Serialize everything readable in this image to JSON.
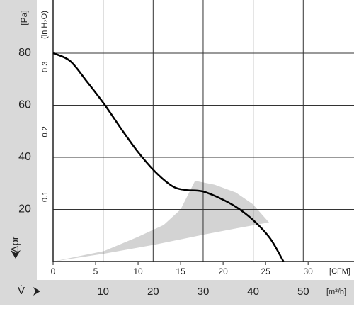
{
  "chart_data": {
    "type": "line",
    "xlim": [
      0,
      35.4
    ],
    "xticks": [
      0,
      5,
      10,
      15,
      20,
      25,
      30
    ],
    "xlabel": "[CFM]",
    "x2lim": [
      0,
      60.15
    ],
    "x2ticks": [
      10,
      20,
      30,
      40,
      50
    ],
    "x2label": "[m³/h]",
    "x2name": "V̇",
    "ylim": [
      0,
      100.4
    ],
    "yticks": [
      20,
      40,
      60,
      80
    ],
    "ylabel": "[Pa]",
    "yname": "Δpr",
    "y2lim": [
      0,
      0.403
    ],
    "y2ticks": [
      0.1,
      0.2,
      0.3
    ],
    "y2label": "(in H₂O)",
    "grid": true,
    "region": {
      "color": "#d3d3d3",
      "x": [
        0,
        6,
        10,
        13,
        15,
        16.7,
        19,
        21.5,
        23.5,
        25.4,
        22,
        18,
        12,
        6,
        0
      ],
      "values": [
        0,
        4,
        9.5,
        14,
        20,
        31,
        29.5,
        26.5,
        22,
        15,
        13,
        10.5,
        6.5,
        3,
        0
      ]
    },
    "series": [
      {
        "color": "#000000",
        "x": [
          0,
          2,
          4,
          6,
          8,
          10,
          12,
          14,
          15.5,
          17.5,
          19.5,
          21.5,
          23.5,
          25.5,
          27.1
        ],
        "values": [
          80,
          77,
          69,
          60.5,
          51,
          42,
          34.5,
          29,
          27.5,
          27,
          24.5,
          21,
          16,
          9,
          0
        ]
      }
    ]
  }
}
